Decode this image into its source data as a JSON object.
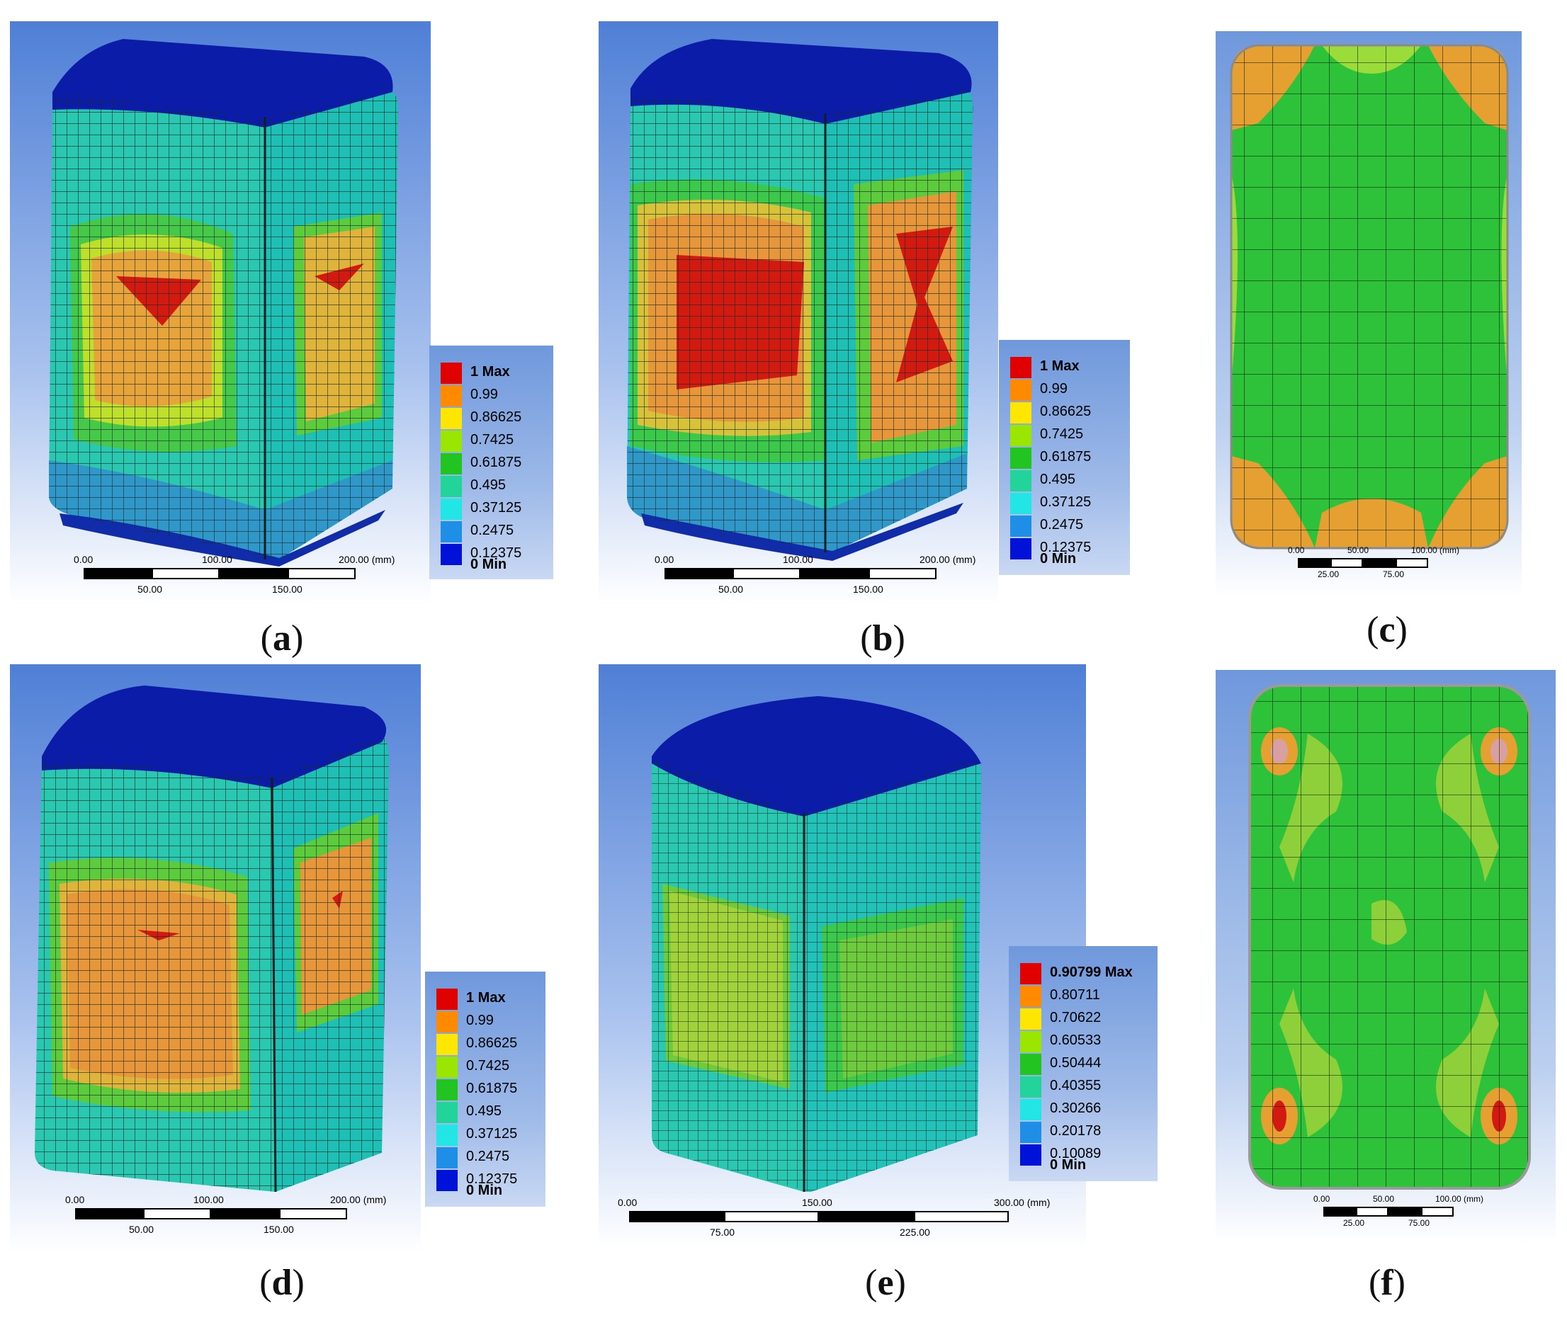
{
  "panels": [
    {
      "id": "a",
      "caption": "a"
    },
    {
      "id": "b",
      "caption": "b"
    },
    {
      "id": "c",
      "caption": "c"
    },
    {
      "id": "d",
      "caption": "d"
    },
    {
      "id": "e",
      "caption": "e"
    },
    {
      "id": "f",
      "caption": "f"
    }
  ],
  "legend_standard": {
    "max_label": "1 Max",
    "values": [
      "0.99",
      "0.86625",
      "0.7425",
      "0.61875",
      "0.495",
      "0.37125",
      "0.2475",
      "0.12375"
    ],
    "min_label": "0 Min"
  },
  "legend_e": {
    "max_label": "0.90799 Max",
    "values": [
      "0.80711",
      "0.70622",
      "0.60533",
      "0.50444",
      "0.40355",
      "0.30266",
      "0.20178",
      "0.10089"
    ],
    "min_label": "0 Min"
  },
  "legend_colors": [
    "#e00000",
    "#ff8a00",
    "#ffe600",
    "#9be600",
    "#22c422",
    "#22d49a",
    "#22e6e6",
    "#1e8ee6",
    "#0012d8"
  ],
  "scale_200": {
    "t0": "0.00",
    "t1": "100.00",
    "t2": "200.00 (mm)",
    "b1": "50.00",
    "b2": "150.00"
  },
  "scale_300": {
    "t0": "0.00",
    "t1": "150.00",
    "t2": "300.00 (mm)",
    "b1": "75.00",
    "b2": "225.00"
  },
  "scale_small": {
    "t0": "0.00",
    "t1": "50.00",
    "t2": "100.00 (mm)",
    "b1": "25.00",
    "b2": "75.00"
  }
}
